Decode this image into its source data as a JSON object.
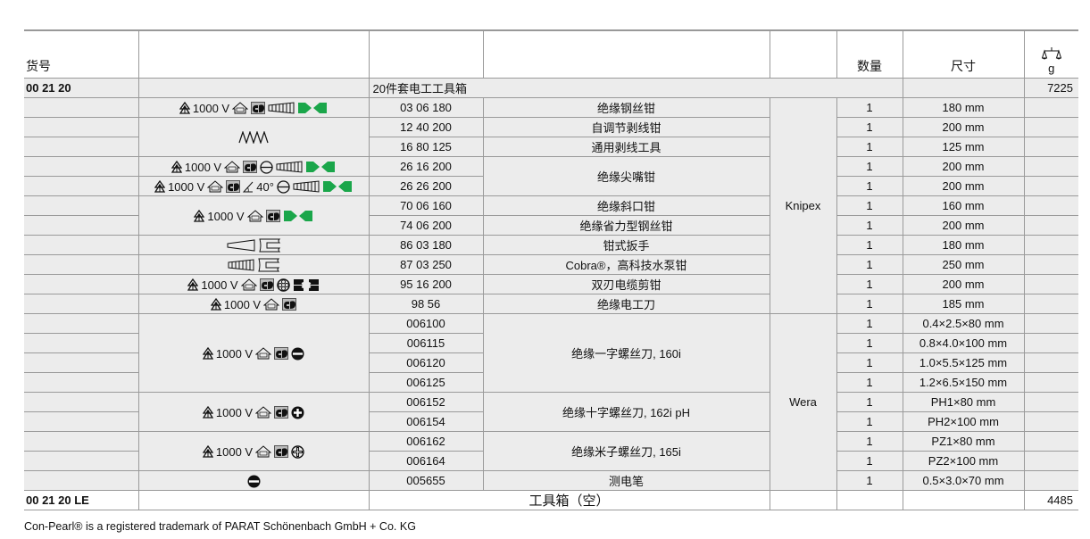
{
  "header": {
    "article_no": "货号",
    "quantity": "数量",
    "size": "尺寸",
    "weight_icon": "scale-icon",
    "weight_unit": "g"
  },
  "set": {
    "article_no": "00 21 20",
    "name": "20件套电工工具箱",
    "weight": "7225"
  },
  "icon_groups": [
    {
      "rows": 1,
      "items": [
        {
          "icon": "hv-triangle"
        },
        {
          "text": "1000 V"
        },
        {
          "icon": "vde"
        },
        {
          "icon": "gs"
        },
        {
          "icon": "grip-bars"
        },
        {
          "icon": "green-bowtie"
        }
      ]
    },
    {
      "rows": 2,
      "items": [
        {
          "icon": "spring"
        }
      ]
    },
    {
      "rows": 1,
      "items": [
        {
          "icon": "hv-triangle"
        },
        {
          "text": "1000 V"
        },
        {
          "icon": "vde"
        },
        {
          "icon": "gs"
        },
        {
          "icon": "minus-circle"
        },
        {
          "icon": "grip-bars"
        },
        {
          "icon": "green-bowtie"
        }
      ]
    },
    {
      "rows": 1,
      "items": [
        {
          "icon": "hv-triangle"
        },
        {
          "text": "1000 V"
        },
        {
          "icon": "vde"
        },
        {
          "icon": "gs"
        },
        {
          "icon": "angle"
        },
        {
          "text": "40°"
        },
        {
          "icon": "minus-circle"
        },
        {
          "icon": "grip-bars"
        },
        {
          "icon": "green-bowtie"
        }
      ]
    },
    {
      "rows": 2,
      "items": [
        {
          "icon": "hv-triangle"
        },
        {
          "text": "1000 V"
        },
        {
          "icon": "vde"
        },
        {
          "icon": "gs"
        },
        {
          "icon": "green-bowtie"
        }
      ]
    },
    {
      "rows": 1,
      "items": [
        {
          "icon": "wedge"
        },
        {
          "icon": "jaw"
        }
      ]
    },
    {
      "rows": 1,
      "items": [
        {
          "icon": "grip-bars"
        },
        {
          "icon": "jaw"
        }
      ]
    },
    {
      "rows": 1,
      "items": [
        {
          "icon": "hv-triangle"
        },
        {
          "text": "1000 V"
        },
        {
          "icon": "vde"
        },
        {
          "icon": "gs"
        },
        {
          "icon": "cable-cross"
        },
        {
          "icon": "cutter-blades"
        }
      ]
    },
    {
      "rows": 1,
      "items": [
        {
          "icon": "hv-triangle"
        },
        {
          "text": "1000 V"
        },
        {
          "icon": "vde"
        },
        {
          "icon": "gs"
        }
      ]
    },
    {
      "rows": 4,
      "items": [
        {
          "icon": "hv-triangle"
        },
        {
          "text": "1000 V"
        },
        {
          "icon": "vde"
        },
        {
          "icon": "gs"
        },
        {
          "icon": "slot-black"
        }
      ]
    },
    {
      "rows": 2,
      "items": [
        {
          "icon": "hv-triangle"
        },
        {
          "text": "1000 V"
        },
        {
          "icon": "vde"
        },
        {
          "icon": "gs"
        },
        {
          "icon": "phillips-black"
        }
      ]
    },
    {
      "rows": 2,
      "items": [
        {
          "icon": "hv-triangle"
        },
        {
          "text": "1000 V"
        },
        {
          "icon": "vde"
        },
        {
          "icon": "gs"
        },
        {
          "icon": "pozi"
        }
      ]
    },
    {
      "rows": 1,
      "items": [
        {
          "icon": "slot-black"
        }
      ]
    }
  ],
  "name_groups": [
    {
      "rows": 1,
      "name": "绝缘钢丝钳"
    },
    {
      "rows": 1,
      "name": "自调节剥线钳"
    },
    {
      "rows": 1,
      "name": "通用剥线工具"
    },
    {
      "rows": 2,
      "name": "绝缘尖嘴钳"
    },
    {
      "rows": 1,
      "name": "绝缘斜口钳"
    },
    {
      "rows": 1,
      "name": "绝缘省力型钢丝钳"
    },
    {
      "rows": 1,
      "name": "钳式扳手"
    },
    {
      "rows": 1,
      "name": "Cobra®，高科技水泵钳"
    },
    {
      "rows": 1,
      "name": "双刃电缆剪钳"
    },
    {
      "rows": 1,
      "name": "绝缘电工刀"
    },
    {
      "rows": 4,
      "name": "绝缘一字螺丝刀, 160i"
    },
    {
      "rows": 2,
      "name": "绝缘十字螺丝刀, 162i pH"
    },
    {
      "rows": 2,
      "name": "绝缘米子螺丝刀, 165i"
    },
    {
      "rows": 1,
      "name": "测电笔"
    }
  ],
  "brand_groups": [
    {
      "rows": 11,
      "name": "Knipex"
    },
    {
      "rows": 9,
      "name": "Wera"
    }
  ],
  "items": [
    {
      "article": "03 06 180",
      "qty": "1",
      "size": "180 mm"
    },
    {
      "article": "12 40 200",
      "qty": "1",
      "size": "200 mm"
    },
    {
      "article": "16 80 125",
      "qty": "1",
      "size": "125 mm"
    },
    {
      "article": "26 16 200",
      "qty": "1",
      "size": "200 mm"
    },
    {
      "article": "26 26 200",
      "qty": "1",
      "size": "200 mm"
    },
    {
      "article": "70 06 160",
      "qty": "1",
      "size": "160 mm"
    },
    {
      "article": "74 06 200",
      "qty": "1",
      "size": "200 mm"
    },
    {
      "article": "86 03 180",
      "qty": "1",
      "size": "180 mm"
    },
    {
      "article": "87 03 250",
      "qty": "1",
      "size": "250 mm"
    },
    {
      "article": "95 16 200",
      "qty": "1",
      "size": "200 mm"
    },
    {
      "article": "98 56",
      "qty": "1",
      "size": "185 mm"
    },
    {
      "article": "006100",
      "qty": "1",
      "size": "0.4×2.5×80 mm"
    },
    {
      "article": "006115",
      "qty": "1",
      "size": "0.8×4.0×100 mm"
    },
    {
      "article": "006120",
      "qty": "1",
      "size": "1.0×5.5×125 mm"
    },
    {
      "article": "006125",
      "qty": "1",
      "size": "1.2×6.5×150 mm"
    },
    {
      "article": "006152",
      "qty": "1",
      "size": "PH1×80 mm"
    },
    {
      "article": "006154",
      "qty": "1",
      "size": "PH2×100 mm"
    },
    {
      "article": "006162",
      "qty": "1",
      "size": "PZ1×80 mm"
    },
    {
      "article": "006164",
      "qty": "1",
      "size": "PZ2×100 mm"
    },
    {
      "article": "005655",
      "qty": "1",
      "size": "0.5×3.0×70 mm"
    }
  ],
  "case": {
    "article_no": "00 21 20 LE",
    "name": "工具箱（空）",
    "weight": "4485"
  },
  "footnote": "Con-Pearl® is a registered trademark of PARAT Schönenbach GmbH + Co. KG",
  "colors": {
    "accent_green": "#1aa64a",
    "cell_bg": "#ececec",
    "border": "#9a9a9a"
  }
}
